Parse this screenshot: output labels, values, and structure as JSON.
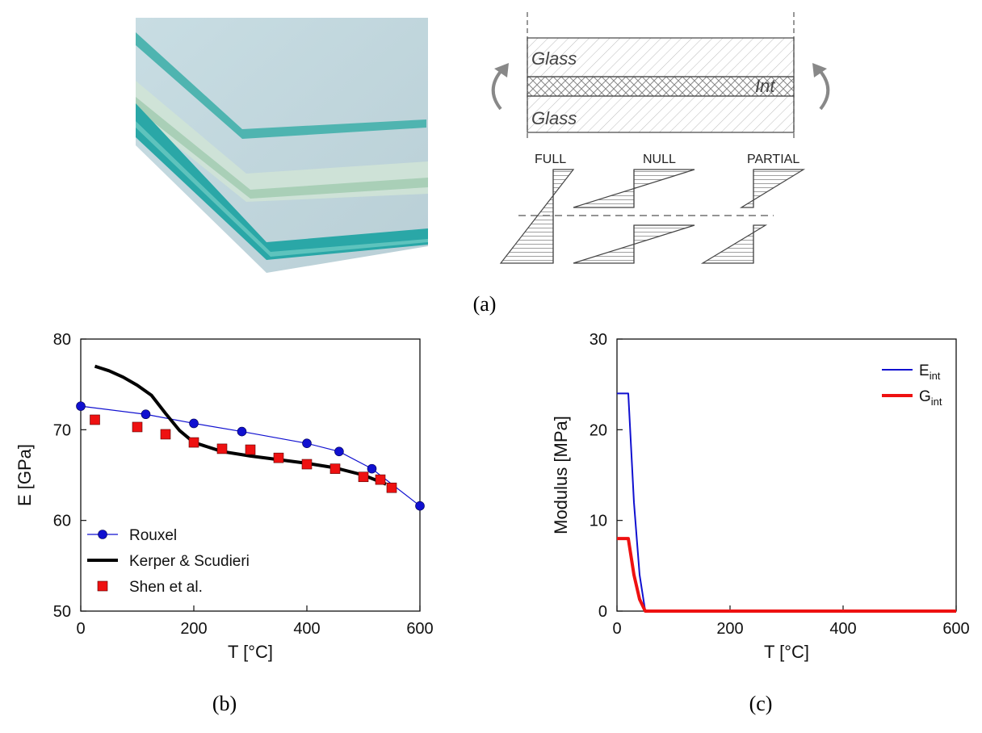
{
  "panel_labels": {
    "a": "(a)",
    "b": "(b)",
    "c": "(c)"
  },
  "diagram": {
    "layer_top": "Glass",
    "layer_mid": "Int",
    "layer_bottom": "Glass",
    "cases": [
      "FULL",
      "NULL",
      "PARTIAL"
    ]
  },
  "chart_data": [
    {
      "type": "line",
      "xlabel": "T  [°C]",
      "ylabel": "E  [GPa]",
      "xlim": [
        0,
        600
      ],
      "ylim": [
        50,
        80
      ],
      "xticks": [
        0,
        200,
        400,
        600
      ],
      "yticks": [
        50,
        60,
        70,
        80
      ],
      "legend_position": "bottom-left",
      "series": [
        {
          "name": "Rouxel",
          "style": "line-marker-circle",
          "color": "#1010d0",
          "x": [
            0,
            115,
            200,
            285,
            400,
            457,
            515,
            600
          ],
          "y": [
            72.6,
            71.7,
            70.7,
            69.8,
            68.5,
            67.6,
            65.7,
            61.6
          ]
        },
        {
          "name": "Kerper & Scudieri",
          "style": "thick-line",
          "color": "#000000",
          "x": [
            25,
            50,
            75,
            100,
            125,
            150,
            175,
            200,
            250,
            300,
            350,
            400,
            450,
            500,
            540
          ],
          "y": [
            77.0,
            76.5,
            75.8,
            74.9,
            73.8,
            71.8,
            69.9,
            68.6,
            67.6,
            67.1,
            66.7,
            66.3,
            65.8,
            65.0,
            64.0
          ]
        },
        {
          "name": "Shen et al.",
          "style": "marker-square",
          "color": "#ee1111",
          "x": [
            25,
            100,
            150,
            200,
            250,
            300,
            350,
            400,
            450,
            500,
            530,
            550
          ],
          "y": [
            71.1,
            70.3,
            69.5,
            68.6,
            67.9,
            67.8,
            66.9,
            66.2,
            65.7,
            64.8,
            64.5,
            63.6
          ]
        }
      ]
    },
    {
      "type": "line",
      "xlabel": "T  [°C]",
      "ylabel": "Modulus  [MPa]",
      "xlim": [
        0,
        600
      ],
      "ylim": [
        0,
        30
      ],
      "xticks": [
        0,
        200,
        400,
        600
      ],
      "yticks": [
        0,
        10,
        20,
        30
      ],
      "legend_position": "top-right",
      "series": [
        {
          "name": "E",
          "name_subscript": "int",
          "color": "#1010d0",
          "width": 2,
          "x": [
            0,
            20,
            30,
            40,
            50,
            600
          ],
          "y": [
            24,
            24,
            12,
            4,
            0,
            0
          ]
        },
        {
          "name": "G",
          "name_subscript": "int",
          "color": "#ee1111",
          "width": 4,
          "x": [
            0,
            20,
            30,
            40,
            50,
            600
          ],
          "y": [
            8,
            8,
            4,
            1.3,
            0,
            0
          ]
        }
      ]
    }
  ]
}
